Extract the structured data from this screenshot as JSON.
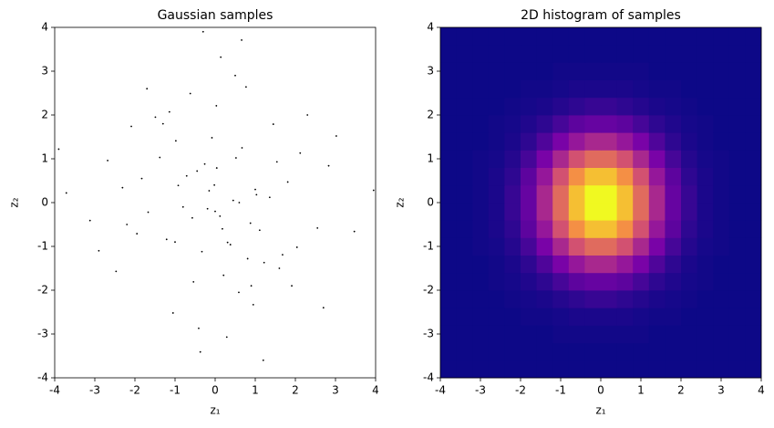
{
  "chart_data": [
    {
      "type": "scatter",
      "title": "Gaussian samples",
      "x_label": "z₁",
      "y_label": "z₂",
      "color": "#000000",
      "xlim": [
        -4,
        4
      ],
      "ylim": [
        -4,
        4
      ],
      "xticks": [
        -4,
        -3,
        -2,
        -1,
        0,
        1,
        2,
        3,
        4
      ],
      "yticks": [
        -4,
        -3,
        -2,
        -1,
        0,
        1,
        2,
        3,
        4
      ],
      "x": [
        0.12,
        -0.45,
        1.03,
        -1.21,
        0.67,
        -0.33,
        0.88,
        -0.92,
        1.54,
        -1.67,
        0.21,
        -0.08,
        0.45,
        -0.71,
        1.22,
        -1.38,
        0.03,
        0.59,
        -0.26,
        1.81,
        -1.95,
        2.12,
        -2.31,
        0.38,
        -0.54,
        1.45,
        -0.15,
        0.77,
        -1.05,
        0.29,
        2.55,
        -2.68,
        3.02,
        -3.12,
        0.95,
        -0.62,
        1.68,
        -1.49,
        0.14,
        -0.37,
        2.83,
        -2.47,
        3.47,
        -3.71,
        0.52,
        -0.19,
        1.11,
        -1.83,
        0.81,
        -0.98,
        0.04,
        0.31,
        -0.57,
        1.36,
        -1.14,
        2.04,
        -2.09,
        0.66,
        -0.41,
        1.91,
        -0.02,
        0.18,
        -1.3,
        1.6,
        -0.8,
        0.5,
        3.95,
        -3.9,
        2.7,
        -2.9,
        1.2,
        -0.3,
        0.9,
        -1.7,
        2.3,
        -2.2,
        0.0,
        1.0,
        -1.0,
        0.6
      ],
      "y": [
        -0.31,
        0.72,
        0.18,
        -0.84,
        1.25,
        -1.12,
        -0.47,
        0.39,
        0.93,
        -0.22,
        -1.66,
        1.48,
        0.05,
        0.61,
        -1.37,
        1.03,
        2.21,
        -2.05,
        0.88,
        0.47,
        -0.71,
        1.13,
        0.34,
        -0.96,
        -1.81,
        1.79,
        0.27,
        2.64,
        -2.52,
        -3.07,
        -0.58,
        0.96,
        1.52,
        -0.41,
        -2.33,
        2.49,
        -1.19,
        1.95,
        3.32,
        -3.41,
        0.84,
        -1.57,
        -0.66,
        0.22,
        1.02,
        -0.14,
        -0.63,
        0.55,
        -1.28,
        1.41,
        0.79,
        -0.91,
        -0.35,
        0.12,
        2.07,
        -1.02,
        1.74,
        3.71,
        -2.87,
        -1.9,
        0.4,
        -0.6,
        1.8,
        -1.5,
        -0.1,
        2.9,
        0.28,
        1.22,
        -2.4,
        -1.1,
        -3.6,
        3.9,
        -1.9,
        2.6,
        2.0,
        -0.5,
        -0.2,
        0.3,
        -0.9,
        0.0
      ]
    },
    {
      "type": "heatmap",
      "title": "2D histogram of samples",
      "x_label": "z₁",
      "y_label": "z₂",
      "colormap": "plasma",
      "xlim": [
        -4,
        4
      ],
      "ylim": [
        -4,
        4
      ],
      "xticks": [
        -4,
        -3,
        -2,
        -1,
        0,
        1,
        2,
        3,
        4
      ],
      "yticks": [
        -4,
        -3,
        -2,
        -1,
        0,
        1,
        2,
        3,
        4
      ],
      "xbins": [
        -4,
        -3.6,
        -3.2,
        -2.8,
        -2.4,
        -2,
        -1.6,
        -1.2,
        -0.8,
        -0.4,
        0,
        0.4,
        0.8,
        1.2,
        1.6,
        2,
        2.4,
        2.8,
        3.2,
        3.6,
        4
      ],
      "ybins": [
        -4,
        -3.6,
        -3.2,
        -2.8,
        -2.4,
        -2,
        -1.6,
        -1.2,
        -0.8,
        -0.4,
        0,
        0.4,
        0.8,
        1.2,
        1.6,
        2,
        2.4,
        2.8,
        3.2,
        3.6,
        4
      ],
      "counts": [
        [
          0,
          0,
          0,
          0,
          0,
          0,
          0,
          0,
          0,
          0,
          0,
          0,
          0,
          0,
          0,
          0,
          0,
          0,
          0,
          0
        ],
        [
          0,
          0,
          0,
          0,
          0,
          0,
          0,
          0,
          0,
          0,
          0,
          0,
          0,
          0,
          0,
          0,
          0,
          0,
          0,
          0
        ],
        [
          0,
          0,
          0,
          0,
          0,
          0,
          0,
          1,
          1,
          1,
          1,
          1,
          1,
          0,
          0,
          0,
          0,
          0,
          0,
          0
        ],
        [
          0,
          0,
          0,
          0,
          0,
          1,
          1,
          2,
          3,
          3,
          3,
          3,
          2,
          1,
          1,
          0,
          0,
          0,
          0,
          0
        ],
        [
          0,
          0,
          0,
          0,
          1,
          2,
          3,
          5,
          7,
          9,
          9,
          7,
          5,
          3,
          2,
          1,
          0,
          0,
          0,
          0
        ],
        [
          0,
          0,
          0,
          1,
          2,
          4,
          7,
          12,
          17,
          19,
          19,
          17,
          12,
          7,
          4,
          2,
          1,
          0,
          0,
          0
        ],
        [
          0,
          0,
          0,
          1,
          3,
          7,
          14,
          23,
          31,
          37,
          37,
          31,
          23,
          14,
          7,
          3,
          1,
          0,
          0,
          0
        ],
        [
          0,
          0,
          1,
          2,
          5,
          12,
          23,
          37,
          51,
          59,
          59,
          51,
          37,
          23,
          12,
          5,
          2,
          1,
          0,
          0
        ],
        [
          0,
          0,
          1,
          3,
          7,
          17,
          31,
          51,
          70,
          82,
          82,
          70,
          51,
          31,
          17,
          7,
          3,
          1,
          0,
          0
        ],
        [
          0,
          0,
          1,
          3,
          9,
          19,
          37,
          59,
          82,
          96,
          96,
          82,
          59,
          37,
          19,
          9,
          3,
          1,
          0,
          0
        ],
        [
          0,
          0,
          1,
          3,
          9,
          19,
          37,
          59,
          82,
          96,
          96,
          82,
          59,
          37,
          19,
          9,
          3,
          1,
          0,
          0
        ],
        [
          0,
          0,
          1,
          3,
          7,
          17,
          31,
          51,
          70,
          82,
          82,
          70,
          51,
          31,
          17,
          7,
          3,
          1,
          0,
          0
        ],
        [
          0,
          0,
          1,
          2,
          5,
          12,
          23,
          37,
          51,
          59,
          59,
          51,
          37,
          23,
          12,
          5,
          2,
          1,
          0,
          0
        ],
        [
          0,
          0,
          0,
          1,
          3,
          7,
          14,
          23,
          31,
          37,
          37,
          31,
          23,
          14,
          7,
          3,
          1,
          0,
          0,
          0
        ],
        [
          0,
          0,
          0,
          1,
          2,
          4,
          7,
          12,
          17,
          19,
          19,
          17,
          12,
          7,
          4,
          2,
          1,
          0,
          0,
          0
        ],
        [
          0,
          0,
          0,
          0,
          1,
          2,
          3,
          5,
          7,
          9,
          9,
          7,
          5,
          3,
          2,
          1,
          0,
          0,
          0,
          0
        ],
        [
          0,
          0,
          0,
          0,
          0,
          1,
          1,
          2,
          3,
          3,
          3,
          3,
          2,
          1,
          1,
          0,
          0,
          0,
          0,
          0
        ],
        [
          0,
          0,
          0,
          0,
          0,
          0,
          0,
          1,
          1,
          1,
          1,
          1,
          1,
          0,
          0,
          0,
          0,
          0,
          0,
          0
        ],
        [
          0,
          0,
          0,
          0,
          0,
          0,
          0,
          0,
          0,
          0,
          0,
          0,
          0,
          0,
          0,
          0,
          0,
          0,
          0,
          0
        ],
        [
          0,
          0,
          0,
          0,
          0,
          0,
          0,
          0,
          0,
          0,
          0,
          0,
          0,
          0,
          0,
          0,
          0,
          0,
          0,
          0
        ]
      ]
    }
  ]
}
